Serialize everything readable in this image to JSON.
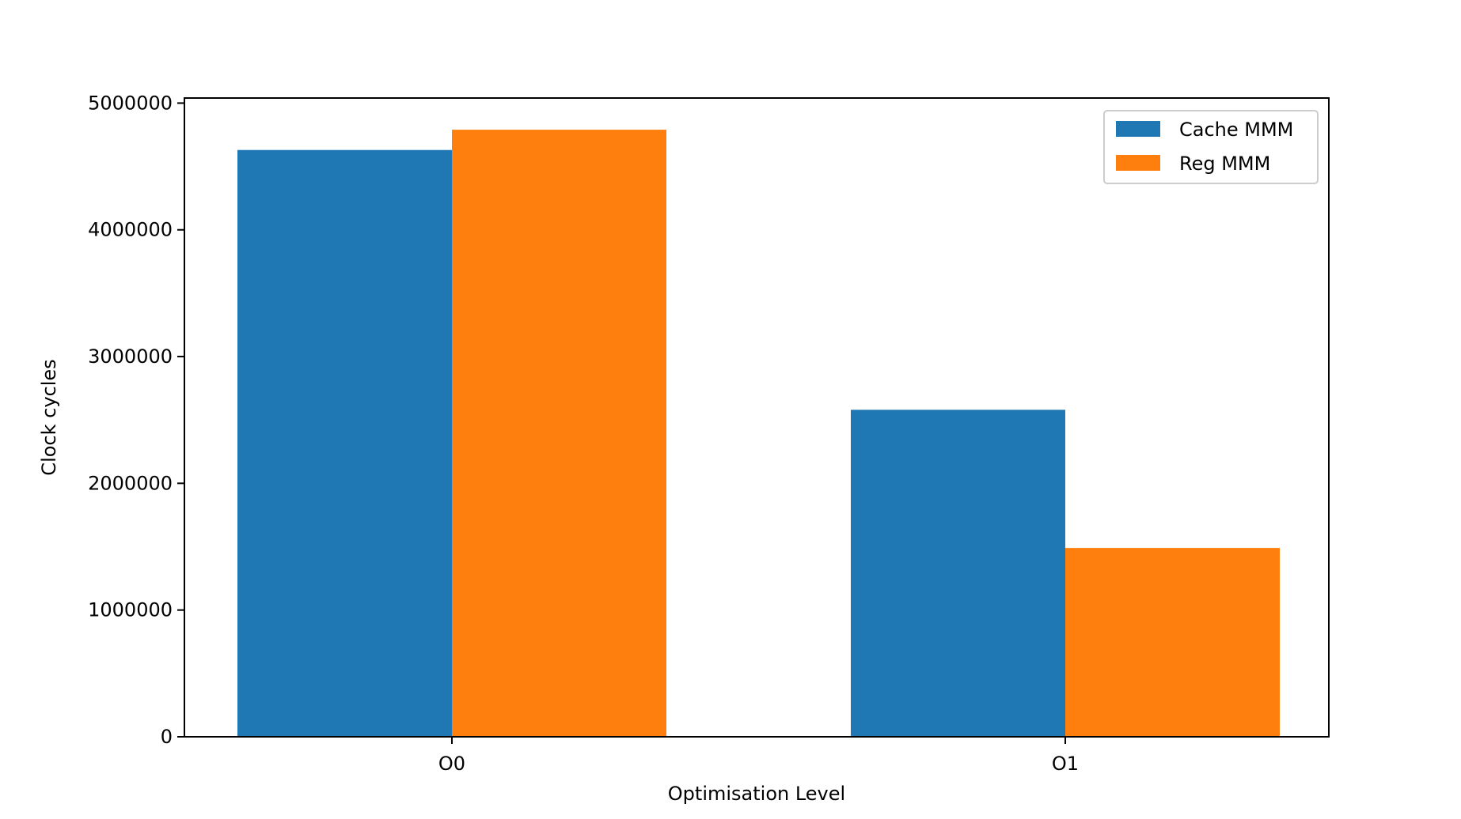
{
  "chart_data": {
    "type": "bar",
    "title": "",
    "xlabel": "Optimisation Level",
    "ylabel": "Clock cycles",
    "categories": [
      "O0",
      "O1"
    ],
    "series": [
      {
        "name": "Cache MMM",
        "color": "#1f77b4",
        "values": [
          4630000,
          2580000
        ]
      },
      {
        "name": "Reg MMM",
        "color": "#ff7f0e",
        "values": [
          4790000,
          1490000
        ]
      }
    ],
    "ylim": [
      0,
      5040000
    ],
    "yticks": [
      0,
      1000000,
      2000000,
      3000000,
      4000000,
      5000000
    ],
    "ytick_labels": [
      "0",
      "1000000",
      "2000000",
      "3000000",
      "4000000",
      "5000000"
    ],
    "grid": false,
    "legend_position": "top-right"
  }
}
